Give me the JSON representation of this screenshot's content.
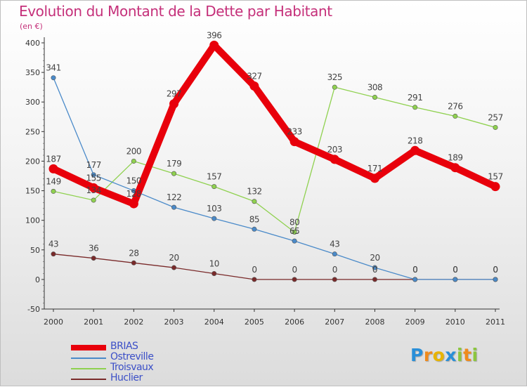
{
  "title": "Evolution du Montant de la Dette par Habitant",
  "subtitle": "(en €)",
  "logo": {
    "text": "Proxiti",
    "letters": [
      {
        "ch": "P",
        "color": "#2a8fd8"
      },
      {
        "ch": "r",
        "color": "#f08a1c"
      },
      {
        "ch": "o",
        "color": "#e8b400"
      },
      {
        "ch": "x",
        "color": "#2a8fd8"
      },
      {
        "ch": "i",
        "color": "#8cc63e"
      },
      {
        "ch": "t",
        "color": "#f08a1c"
      },
      {
        "ch": "i",
        "color": "#8cc63e"
      }
    ]
  },
  "chart_data": {
    "type": "line",
    "title": "Evolution du Montant de la Dette par Habitant",
    "subtitle": "(en €)",
    "xlabel": "",
    "ylabel": "",
    "x": [
      "2000",
      "2001",
      "2002",
      "2003",
      "2004",
      "2005",
      "2006",
      "2007",
      "2008",
      "2009",
      "2010",
      "2011"
    ],
    "ylim": [
      -50,
      400
    ],
    "yticks": [
      -50,
      0,
      50,
      100,
      150,
      200,
      250,
      300,
      350,
      400
    ],
    "grid": false,
    "legend_position": "bottom-left",
    "series": [
      {
        "name": "BRIAS",
        "color": "#e8000b",
        "values": [
          187,
          155,
          128,
          297,
          396,
          327,
          233,
          203,
          171,
          218,
          189,
          157
        ]
      },
      {
        "name": "Ostreville",
        "color": "#4a8ac9",
        "values": [
          341,
          177,
          150,
          122,
          103,
          85,
          65,
          43,
          20,
          0,
          0,
          0
        ]
      },
      {
        "name": "Troisvaux",
        "color": "#8fd14f",
        "values": [
          149,
          134,
          200,
          179,
          157,
          132,
          80,
          325,
          308,
          291,
          276,
          257
        ]
      },
      {
        "name": "Huclier",
        "color": "#7a2a2a",
        "values": [
          43,
          36,
          28,
          20,
          10,
          0,
          0,
          0,
          0,
          0,
          0,
          0
        ]
      }
    ]
  }
}
